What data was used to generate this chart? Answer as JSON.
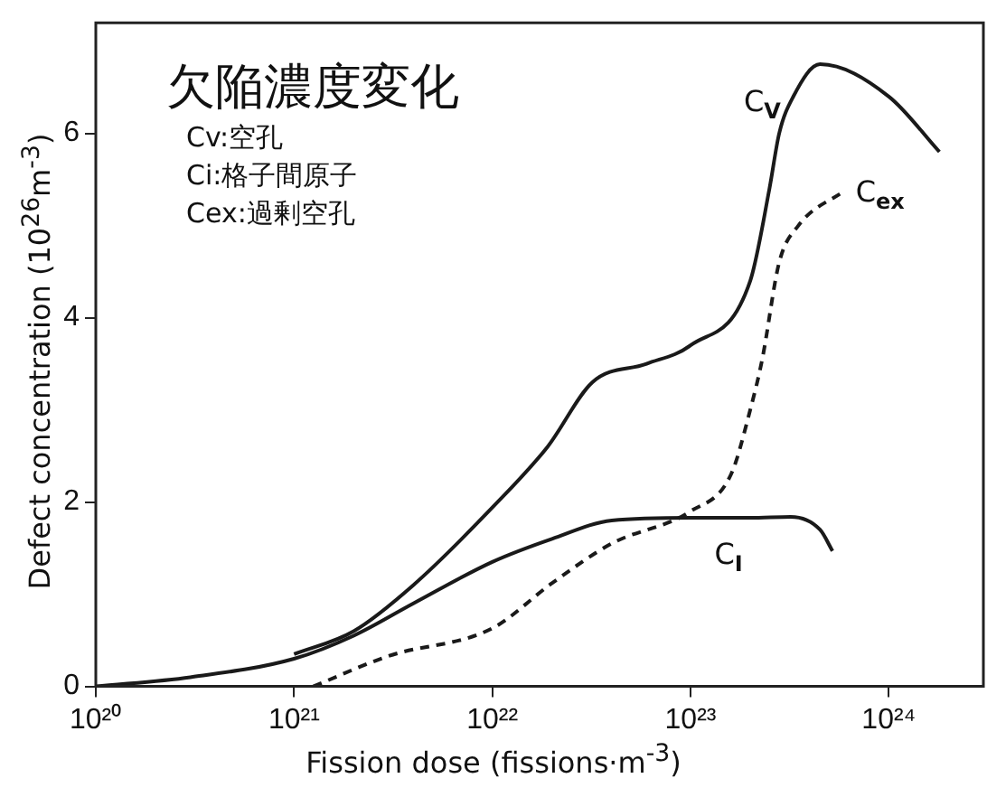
{
  "chart_data": {
    "type": "line",
    "title": "欠陥濃度変化",
    "xlabel": "Fission dose (fissions·m$^{-3}$)",
    "ylabel": "Defect concentration (10$^{26}$m$^{-3}$)",
    "log": "x",
    "xlim": [
      1e+20,
      3e+24
    ],
    "ylim": [
      0,
      7.2
    ],
    "xticks": [
      {
        "value": 1e+20,
        "label": "10²⁰"
      },
      {
        "value": 1e+21,
        "label": "10²¹"
      },
      {
        "value": 1e+22,
        "label": "10²²"
      },
      {
        "value": 1e+23,
        "label": "10²³"
      },
      {
        "value": 1e+24,
        "label": "10²⁴"
      }
    ],
    "yticks": [
      0,
      2,
      4,
      6
    ],
    "grid": false,
    "legend": false,
    "marker": "none",
    "series": [
      {
        "name": "C$_{V}$",
        "color": "#1a1a1a",
        "line_style": "solid",
        "x": [
          1e+21,
          2e+21,
          4e+21,
          1e+22,
          1.9e+22,
          3.2e+22,
          6e+22,
          1e+23,
          2e+23,
          2.5e+23,
          2.8e+23,
          3.3e+23,
          4.5e+23,
          1e+24,
          1.8e+24
        ],
        "values": [
          0.35,
          0.6,
          1.1,
          1.94,
          2.6,
          3.3,
          3.5,
          3.7,
          4.4,
          5.4,
          6.0,
          6.4,
          6.75,
          6.4,
          5.8
        ]
      },
      {
        "name": "C$_{I}$",
        "color": "#1a1a1a",
        "line_style": "solid",
        "x": [
          1e+20,
          3e+20,
          1e+21,
          2e+21,
          4e+21,
          1e+22,
          2e+22,
          4e+22,
          1e+23,
          2e+23,
          3.2e+23,
          4.5e+23,
          5.2e+23
        ],
        "values": [
          0,
          0.1,
          0.3,
          0.55,
          0.9,
          1.35,
          1.6,
          1.8,
          1.83,
          1.83,
          1.84,
          1.7,
          1.47
        ]
      },
      {
        "name": "C$_{ex}$",
        "color": "#1a1a1a",
        "line_style": "dashed",
        "x": [
          1.25e+21,
          3e+21,
          1e+22,
          2e+22,
          4e+22,
          1e+23,
          1.6e+23,
          2e+23,
          2.3e+23,
          2.8e+23,
          3.5e+23,
          6e+23
        ],
        "values": [
          0,
          0.33,
          0.63,
          1.12,
          1.55,
          1.9,
          2.3,
          3.0,
          3.55,
          4.6,
          5.0,
          5.38
        ]
      }
    ],
    "annotations": [
      "Cv:空孔",
      "Ci:格子間原子",
      "Cex:過剰空孔"
    ]
  }
}
